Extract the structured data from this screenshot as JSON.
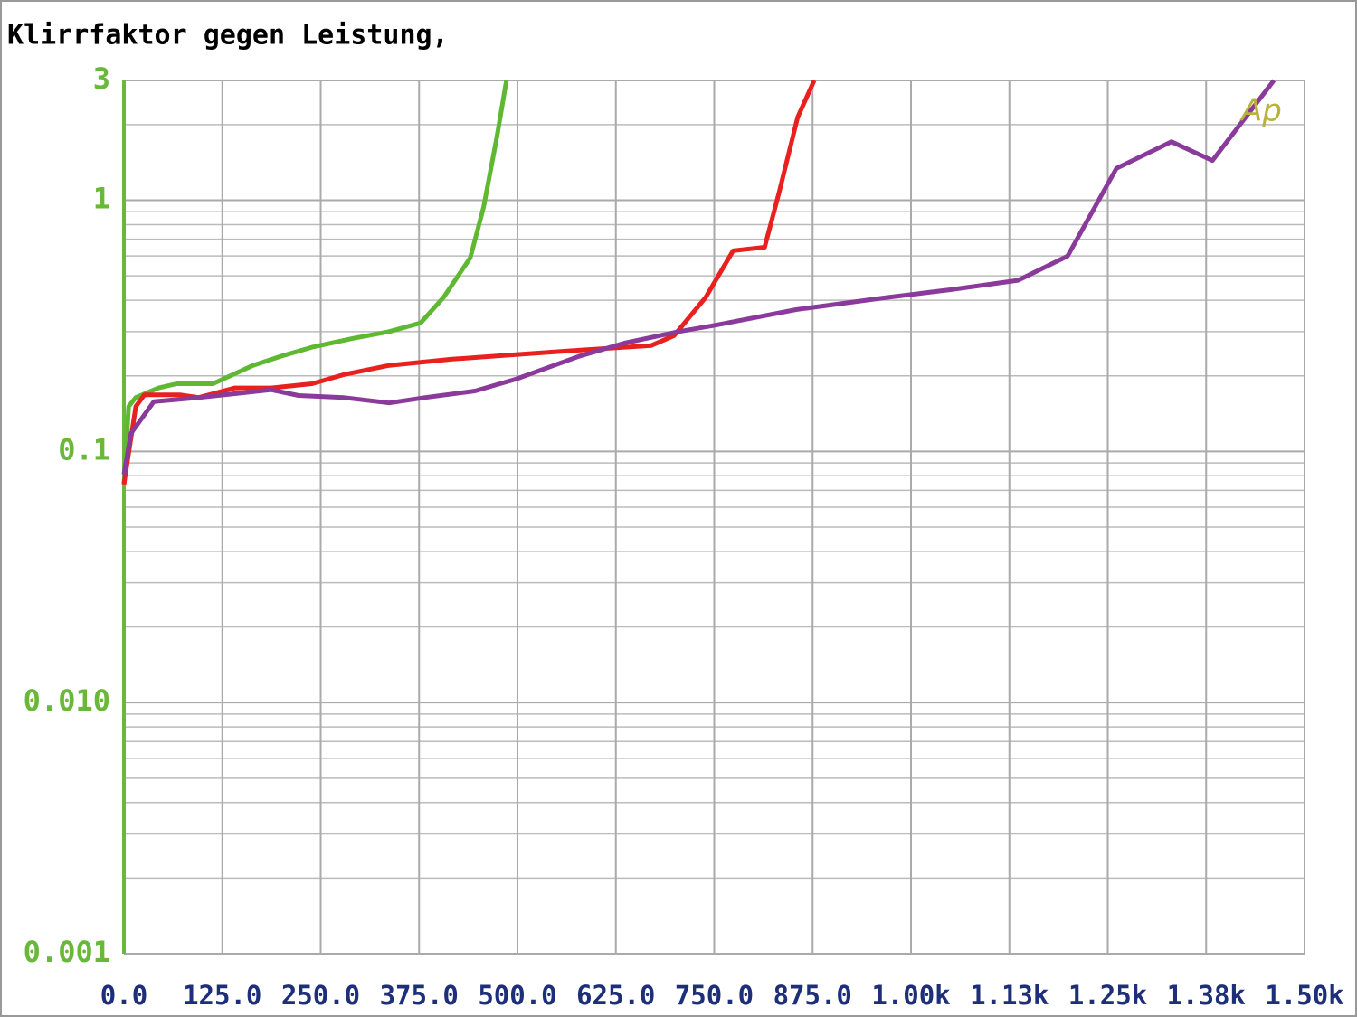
{
  "chart_data": {
    "type": "line",
    "title": "Klirrfaktor gegen Leistung,",
    "logo": "Ap",
    "yscale": "log",
    "grid": true,
    "xlim": [
      0,
      1500
    ],
    "xticks": [
      {
        "value": 0,
        "label": "0.0"
      },
      {
        "value": 125,
        "label": "125.0"
      },
      {
        "value": 250,
        "label": "250.0"
      },
      {
        "value": 375,
        "label": "375.0"
      },
      {
        "value": 500,
        "label": "500.0"
      },
      {
        "value": 625,
        "label": "625.0"
      },
      {
        "value": 750,
        "label": "750.0"
      },
      {
        "value": 875,
        "label": "875.0"
      },
      {
        "value": 1000,
        "label": "1.00k"
      },
      {
        "value": 1125,
        "label": "1.13k"
      },
      {
        "value": 1250,
        "label": "1.25k"
      },
      {
        "value": 1375,
        "label": "1.38k"
      },
      {
        "value": 1500,
        "label": "1.50k"
      }
    ],
    "ylim": [
      0.001,
      3
    ],
    "yticks": [
      3,
      1,
      0.1,
      {
        "value": 0.01,
        "label": "0.010"
      },
      0.001
    ],
    "y_minor_ticks": [
      0.002,
      0.003,
      0.004,
      0.005,
      0.006,
      0.007,
      0.008,
      0.009,
      0.02,
      0.03,
      0.04,
      0.05,
      0.06,
      0.07,
      0.08,
      0.09,
      0.2,
      0.3,
      0.4,
      0.5,
      0.6,
      0.7,
      0.8,
      0.9,
      2
    ],
    "series": [
      {
        "color": "#5fb832",
        "x": [
          0,
          6,
          15,
          44,
          67,
          113,
          164,
          199,
          239,
          291,
          337,
          377,
          406,
          440,
          457,
          474,
          486
        ],
        "values": [
          0.074,
          0.151,
          0.164,
          0.179,
          0.186,
          0.186,
          0.22,
          0.239,
          0.26,
          0.282,
          0.3,
          0.325,
          0.41,
          0.59,
          0.94,
          1.8,
          3
        ]
      },
      {
        "color": "#e8201e",
        "x": [
          0,
          15,
          26,
          72,
          95,
          141,
          187,
          239,
          279,
          337,
          417,
          498,
          578,
          670,
          699,
          739,
          774,
          814,
          832,
          856,
          877
        ],
        "values": [
          0.074,
          0.151,
          0.168,
          0.168,
          0.164,
          0.179,
          0.179,
          0.186,
          0.202,
          0.22,
          0.233,
          0.243,
          0.253,
          0.264,
          0.289,
          0.41,
          0.63,
          0.65,
          1.06,
          2.14,
          3
        ]
      },
      {
        "color": "#8a3a9a",
        "x": [
          0,
          9,
          38,
          95,
          187,
          222,
          279,
          337,
          383,
          446,
          498,
          578,
          636,
          705,
          751,
          854,
          969,
          1049,
          1136,
          1199,
          1261,
          1331,
          1383,
          1461
        ],
        "values": [
          0.081,
          0.118,
          0.158,
          0.164,
          0.176,
          0.167,
          0.164,
          0.156,
          0.164,
          0.174,
          0.194,
          0.239,
          0.27,
          0.3,
          0.318,
          0.367,
          0.41,
          0.44,
          0.48,
          0.6,
          1.34,
          1.71,
          1.44,
          3
        ]
      }
    ]
  }
}
